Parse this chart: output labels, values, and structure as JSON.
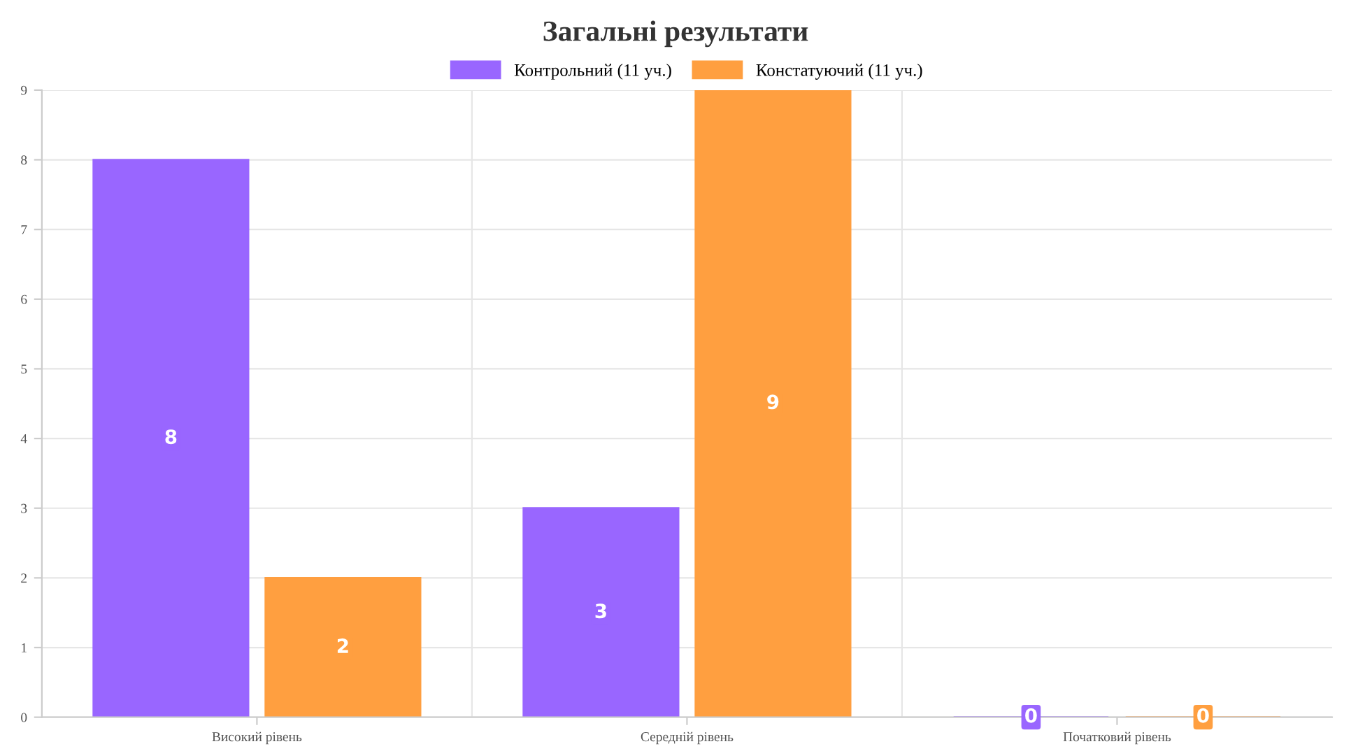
{
  "chart_data": {
    "type": "bar",
    "title": "Загальні результати",
    "categories": [
      "Високий рівень",
      "Середній рівень",
      "Початковий рівень"
    ],
    "series": [
      {
        "name": "Контрольний (11 уч.)",
        "color": "#9966ff",
        "values": [
          8,
          3,
          0
        ]
      },
      {
        "name": "Констатуючий (11 уч.)",
        "color": "#ff9f40",
        "values": [
          2,
          9,
          0
        ]
      }
    ],
    "ylim": [
      0,
      9
    ],
    "yticks": [
      0,
      1,
      2,
      3,
      4,
      5,
      6,
      7,
      8,
      9
    ],
    "grid": true,
    "legend": "top",
    "data_labels": true
  }
}
